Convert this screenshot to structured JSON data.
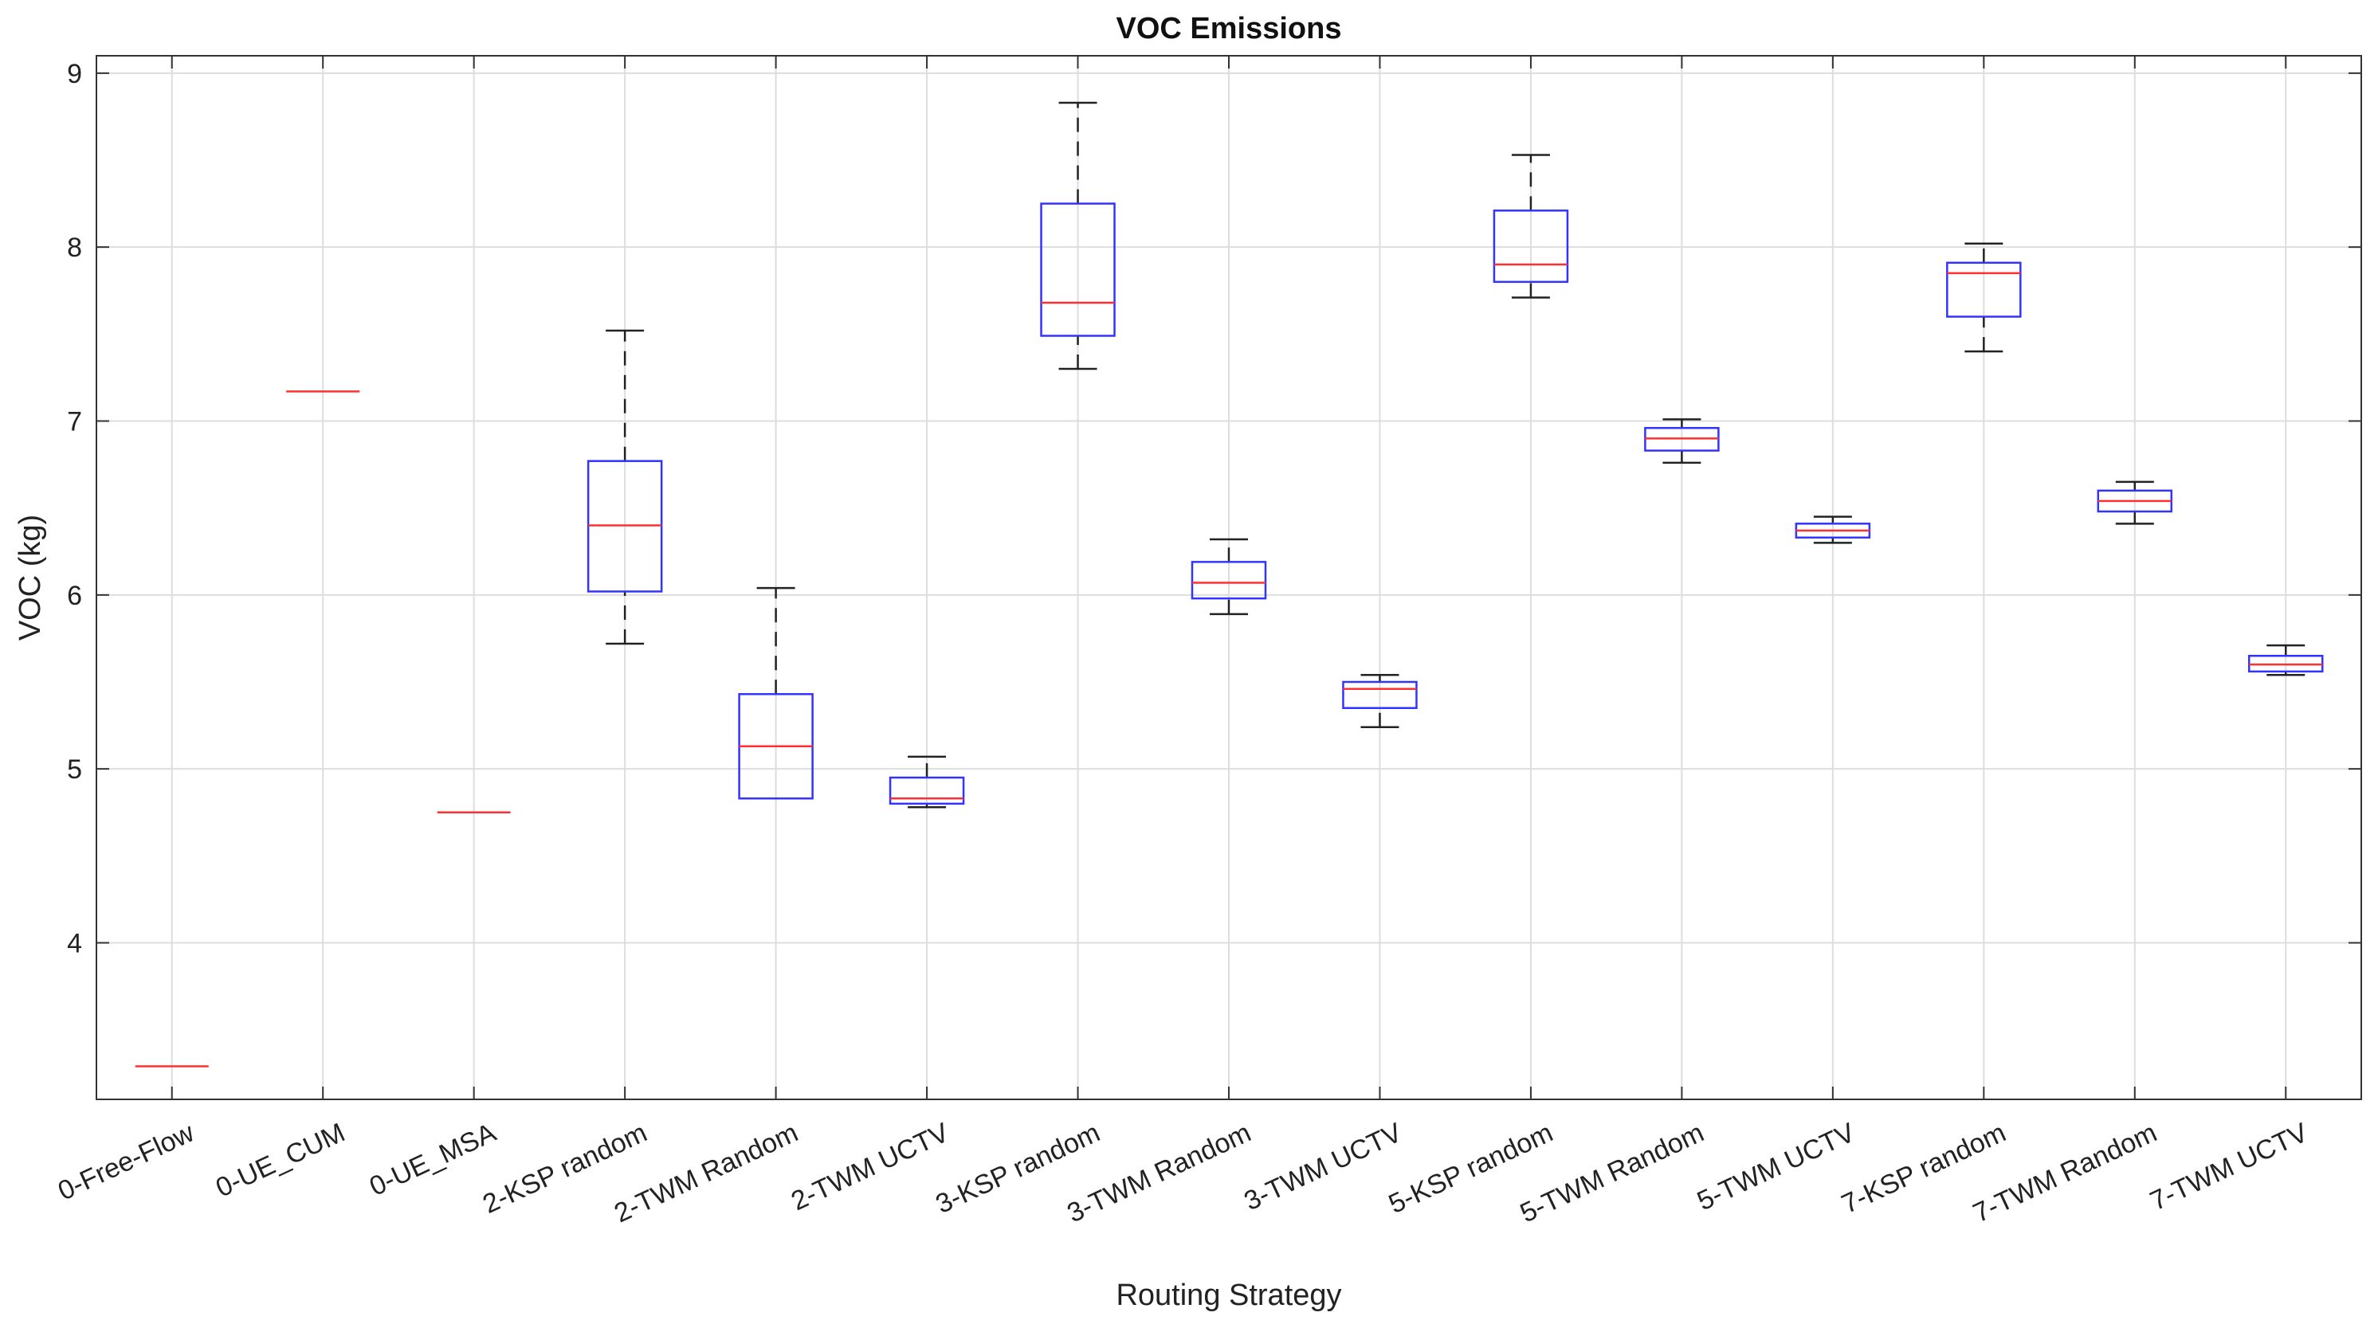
{
  "chart_data": {
    "type": "boxplot",
    "title": "VOC Emissions",
    "xlabel": "Routing Strategy",
    "ylabel": "VOC (kg)",
    "ylim": [
      3.1,
      9.1
    ],
    "yticks": [
      4,
      5,
      6,
      7,
      8,
      9
    ],
    "grid": true,
    "colors": {
      "box": "#3333ff",
      "median": "#ff3030",
      "whisker": "#222222",
      "grid": "#dddddd",
      "axis": "#333333"
    },
    "categories": [
      "0-Free-Flow",
      "0-UE_CUM",
      "0-UE_MSA",
      "2-KSP random",
      "2-TWM Random",
      "2-TWM UCTV",
      "3-KSP random",
      "3-TWM Random",
      "3-TWM UCTV",
      "5-KSP random",
      "5-TWM Random",
      "5-TWM UCTV",
      "7-KSP random",
      "7-TWM Random",
      "7-TWM UCTV"
    ],
    "boxes": [
      {
        "min": 3.29,
        "q1": 3.29,
        "median": 3.29,
        "q3": 3.29,
        "max": 3.29
      },
      {
        "min": 7.17,
        "q1": 7.17,
        "median": 7.17,
        "q3": 7.17,
        "max": 7.17
      },
      {
        "min": 4.75,
        "q1": 4.75,
        "median": 4.75,
        "q3": 4.75,
        "max": 4.75
      },
      {
        "min": 5.72,
        "q1": 6.02,
        "median": 6.4,
        "q3": 6.77,
        "max": 7.52
      },
      {
        "min": 4.83,
        "q1": 4.83,
        "median": 5.13,
        "q3": 5.43,
        "max": 6.04
      },
      {
        "min": 4.78,
        "q1": 4.8,
        "median": 4.83,
        "q3": 4.95,
        "max": 5.07
      },
      {
        "min": 7.3,
        "q1": 7.49,
        "median": 7.68,
        "q3": 8.25,
        "max": 8.83
      },
      {
        "min": 5.89,
        "q1": 5.98,
        "median": 6.07,
        "q3": 6.19,
        "max": 6.32
      },
      {
        "min": 5.24,
        "q1": 5.35,
        "median": 5.46,
        "q3": 5.5,
        "max": 5.54
      },
      {
        "min": 7.71,
        "q1": 7.8,
        "median": 7.9,
        "q3": 8.21,
        "max": 8.53
      },
      {
        "min": 6.76,
        "q1": 6.83,
        "median": 6.9,
        "q3": 6.96,
        "max": 7.01
      },
      {
        "min": 6.3,
        "q1": 6.33,
        "median": 6.37,
        "q3": 6.41,
        "max": 6.45
      },
      {
        "min": 7.4,
        "q1": 7.6,
        "median": 7.85,
        "q3": 7.91,
        "max": 8.02
      },
      {
        "min": 6.41,
        "q1": 6.48,
        "median": 6.54,
        "q3": 6.6,
        "max": 6.65
      },
      {
        "min": 5.54,
        "q1": 5.56,
        "median": 5.6,
        "q3": 5.65,
        "max": 5.71
      }
    ]
  }
}
